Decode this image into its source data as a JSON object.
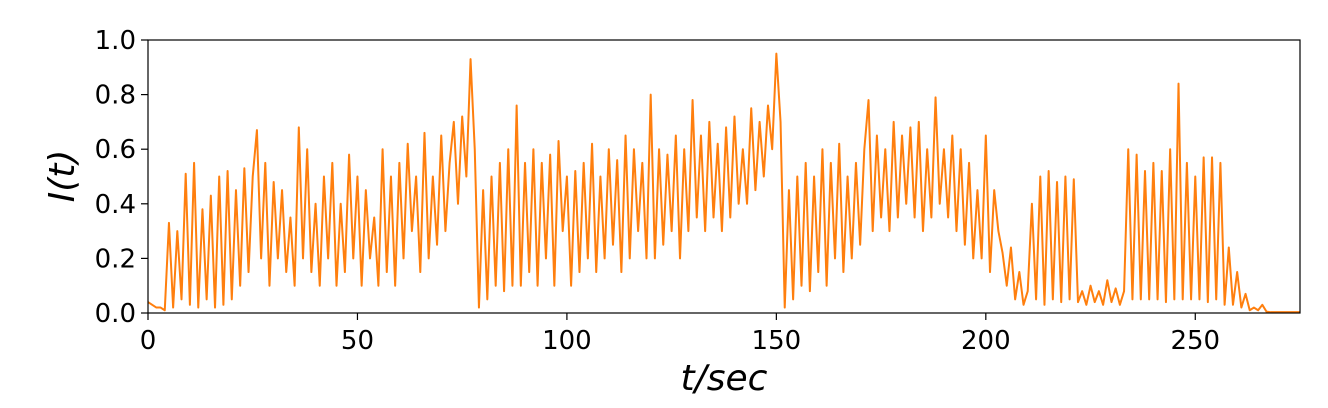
{
  "chart_data": {
    "type": "line",
    "x_label": "t/sec",
    "y_label": "I(t)",
    "color": "#ff7f0e",
    "xlim": [
      0,
      275
    ],
    "ylim": [
      0,
      1
    ],
    "xticks": [
      0,
      50,
      100,
      150,
      200,
      250
    ],
    "yticks": [
      {
        "value": 0,
        "label": "0.0"
      },
      {
        "value": 0.2,
        "label": "0.2"
      },
      {
        "value": 0.4,
        "label": "0.4"
      },
      {
        "value": 0.6,
        "label": "0.6"
      },
      {
        "value": 0.8,
        "label": "0.8"
      },
      {
        "value": 1,
        "label": "1.0"
      }
    ],
    "x": [
      0,
      1,
      2,
      3,
      4,
      5,
      6,
      7,
      8,
      9,
      10,
      11,
      12,
      13,
      14,
      15,
      16,
      17,
      18,
      19,
      20,
      21,
      22,
      23,
      24,
      25,
      26,
      27,
      28,
      29,
      30,
      31,
      32,
      33,
      34,
      35,
      36,
      37,
      38,
      39,
      40,
      41,
      42,
      43,
      44,
      45,
      46,
      47,
      48,
      49,
      50,
      51,
      52,
      53,
      54,
      55,
      56,
      57,
      58,
      59,
      60,
      61,
      62,
      63,
      64,
      65,
      66,
      67,
      68,
      69,
      70,
      71,
      72,
      73,
      74,
      75,
      76,
      77,
      78,
      79,
      80,
      81,
      82,
      83,
      84,
      85,
      86,
      87,
      88,
      89,
      90,
      91,
      92,
      93,
      94,
      95,
      96,
      97,
      98,
      99,
      100,
      101,
      102,
      103,
      104,
      105,
      106,
      107,
      108,
      109,
      110,
      111,
      112,
      113,
      114,
      115,
      116,
      117,
      118,
      119,
      120,
      121,
      122,
      123,
      124,
      125,
      126,
      127,
      128,
      129,
      130,
      131,
      132,
      133,
      134,
      135,
      136,
      137,
      138,
      139,
      140,
      141,
      142,
      143,
      144,
      145,
      146,
      147,
      148,
      149,
      150,
      151,
      152,
      153,
      154,
      155,
      156,
      157,
      158,
      159,
      160,
      161,
      162,
      163,
      164,
      165,
      166,
      167,
      168,
      169,
      170,
      171,
      172,
      173,
      174,
      175,
      176,
      177,
      178,
      179,
      180,
      181,
      182,
      183,
      184,
      185,
      186,
      187,
      188,
      189,
      190,
      191,
      192,
      193,
      194,
      195,
      196,
      197,
      198,
      199,
      200,
      201,
      202,
      203,
      204,
      205,
      206,
      207,
      208,
      209,
      210,
      211,
      212,
      213,
      214,
      215,
      216,
      217,
      218,
      219,
      220,
      221,
      222,
      223,
      224,
      225,
      226,
      227,
      228,
      229,
      230,
      231,
      232,
      233,
      234,
      235,
      236,
      237,
      238,
      239,
      240,
      241,
      242,
      243,
      244,
      245,
      246,
      247,
      248,
      249,
      250,
      251,
      252,
      253,
      254,
      255,
      256,
      257,
      258,
      259,
      260,
      261,
      262,
      263,
      264,
      265,
      266,
      267,
      268,
      269,
      270,
      271,
      272,
      273,
      274,
      275
    ],
    "values": [
      0.04,
      0.03,
      0.02,
      0.02,
      0.01,
      0.33,
      0.02,
      0.3,
      0.05,
      0.51,
      0.03,
      0.55,
      0.02,
      0.38,
      0.05,
      0.43,
      0.02,
      0.5,
      0.03,
      0.52,
      0.05,
      0.45,
      0.1,
      0.53,
      0.15,
      0.5,
      0.67,
      0.2,
      0.55,
      0.1,
      0.48,
      0.2,
      0.45,
      0.15,
      0.35,
      0.1,
      0.68,
      0.2,
      0.6,
      0.15,
      0.4,
      0.1,
      0.5,
      0.2,
      0.55,
      0.1,
      0.4,
      0.15,
      0.58,
      0.2,
      0.5,
      0.1,
      0.45,
      0.2,
      0.35,
      0.1,
      0.6,
      0.15,
      0.5,
      0.1,
      0.55,
      0.2,
      0.62,
      0.3,
      0.5,
      0.15,
      0.66,
      0.2,
      0.5,
      0.25,
      0.65,
      0.3,
      0.55,
      0.7,
      0.4,
      0.72,
      0.5,
      0.93,
      0.6,
      0.02,
      0.45,
      0.05,
      0.5,
      0.1,
      0.55,
      0.08,
      0.6,
      0.1,
      0.76,
      0.1,
      0.55,
      0.15,
      0.6,
      0.1,
      0.55,
      0.2,
      0.58,
      0.1,
      0.63,
      0.3,
      0.5,
      0.1,
      0.52,
      0.15,
      0.55,
      0.2,
      0.62,
      0.15,
      0.5,
      0.2,
      0.6,
      0.25,
      0.56,
      0.15,
      0.65,
      0.2,
      0.6,
      0.3,
      0.55,
      0.2,
      0.8,
      0.2,
      0.6,
      0.25,
      0.58,
      0.3,
      0.65,
      0.2,
      0.6,
      0.3,
      0.78,
      0.35,
      0.65,
      0.3,
      0.7,
      0.35,
      0.62,
      0.3,
      0.68,
      0.35,
      0.72,
      0.4,
      0.6,
      0.4,
      0.75,
      0.45,
      0.7,
      0.5,
      0.76,
      0.6,
      0.95,
      0.7,
      0.02,
      0.45,
      0.05,
      0.5,
      0.1,
      0.55,
      0.08,
      0.5,
      0.15,
      0.6,
      0.1,
      0.55,
      0.2,
      0.62,
      0.15,
      0.5,
      0.2,
      0.55,
      0.25,
      0.6,
      0.78,
      0.3,
      0.65,
      0.35,
      0.6,
      0.3,
      0.7,
      0.35,
      0.65,
      0.4,
      0.68,
      0.35,
      0.7,
      0.3,
      0.6,
      0.35,
      0.79,
      0.4,
      0.6,
      0.35,
      0.65,
      0.3,
      0.6,
      0.25,
      0.55,
      0.2,
      0.45,
      0.2,
      0.65,
      0.15,
      0.45,
      0.3,
      0.22,
      0.1,
      0.24,
      0.05,
      0.15,
      0.03,
      0.08,
      0.4,
      0.05,
      0.5,
      0.03,
      0.52,
      0.05,
      0.48,
      0.04,
      0.5,
      0.05,
      0.49,
      0.04,
      0.08,
      0.03,
      0.1,
      0.04,
      0.08,
      0.03,
      0.12,
      0.04,
      0.09,
      0.03,
      0.08,
      0.6,
      0.05,
      0.58,
      0.05,
      0.52,
      0.05,
      0.55,
      0.05,
      0.52,
      0.04,
      0.6,
      0.05,
      0.84,
      0.05,
      0.55,
      0.05,
      0.5,
      0.05,
      0.57,
      0.04,
      0.57,
      0.05,
      0.55,
      0.03,
      0.24,
      0.03,
      0.15,
      0.02,
      0.07,
      0.01,
      0.02,
      0.01,
      0.03,
      0.005,
      0.003,
      0.003,
      0.003,
      0.003,
      0.003,
      0.003,
      0.003,
      0.003
    ]
  }
}
